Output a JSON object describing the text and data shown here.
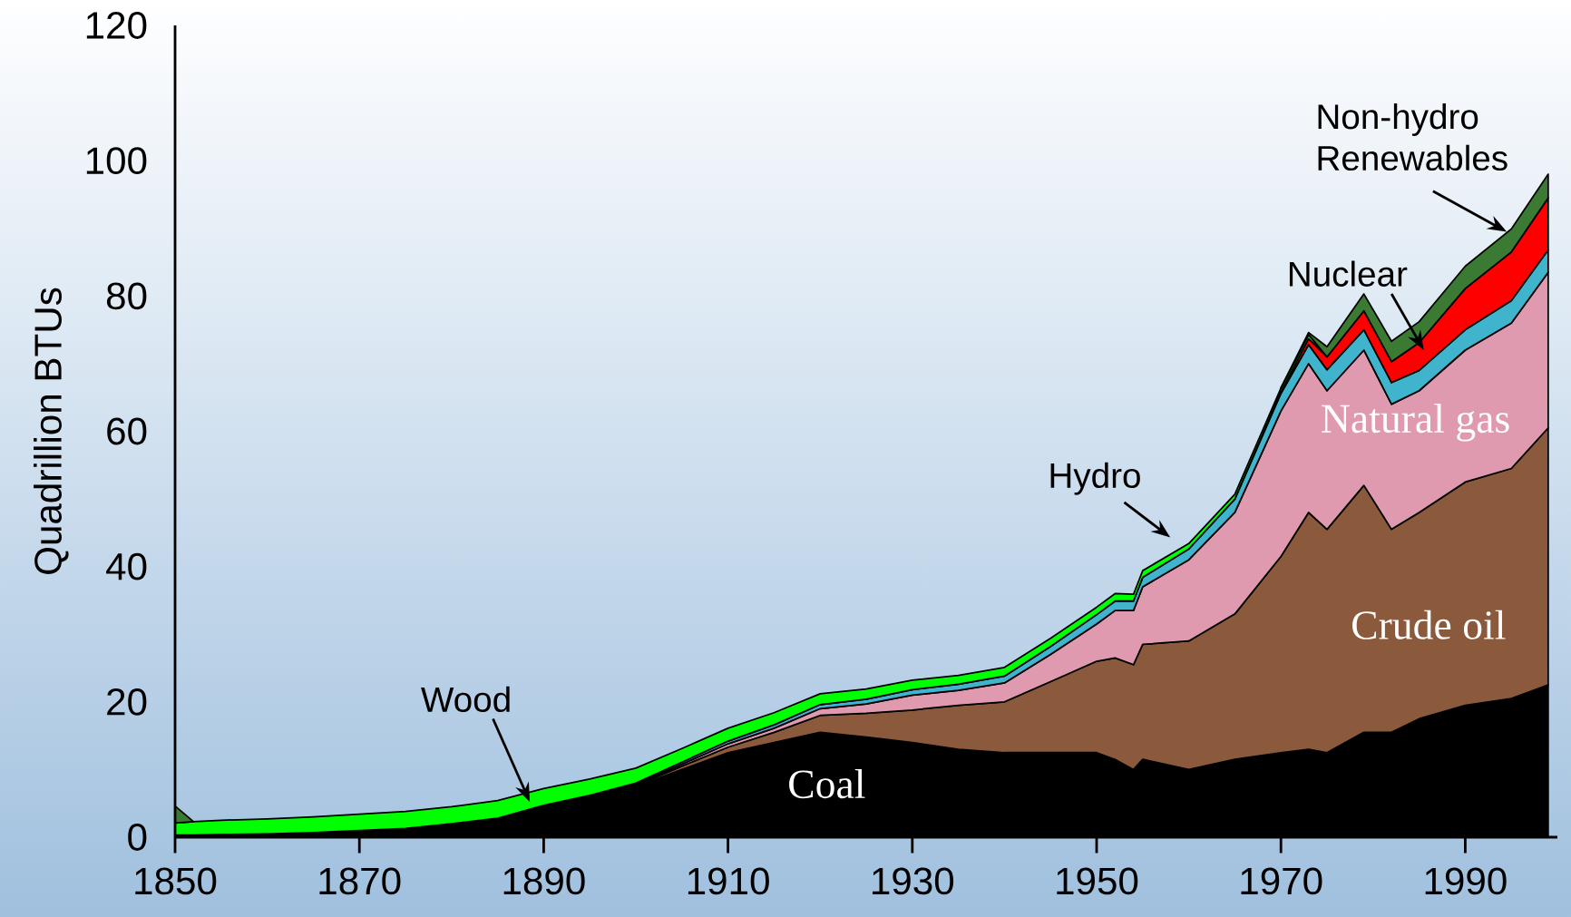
{
  "chart_data": {
    "type": "area",
    "stacked": true,
    "ylabel": "Quadrillion BTUs",
    "x": [
      1850,
      1852,
      1855,
      1860,
      1865,
      1870,
      1875,
      1880,
      1885,
      1890,
      1895,
      1900,
      1905,
      1910,
      1915,
      1920,
      1925,
      1930,
      1935,
      1940,
      1945,
      1950,
      1952,
      1954,
      1955,
      1960,
      1965,
      1970,
      1973,
      1975,
      1979,
      1982,
      1985,
      1990,
      1995,
      1999
    ],
    "xlim": [
      1850,
      2000
    ],
    "xticks": [
      1850,
      1870,
      1890,
      1910,
      1930,
      1950,
      1970,
      1990
    ],
    "ylim": [
      0,
      120
    ],
    "yticks": [
      0,
      20,
      40,
      60,
      80,
      100,
      120
    ],
    "series": [
      {
        "name": "Coal",
        "color": "#000000",
        "values": [
          0.3,
          0.3,
          0.4,
          0.5,
          0.7,
          1.0,
          1.3,
          2.0,
          2.8,
          4.5,
          6.0,
          7.5,
          10,
          12.5,
          14,
          15.5,
          14.8,
          14,
          13,
          12.5,
          12.5,
          12.5,
          11.5,
          10,
          11.5,
          10,
          11.5,
          12.5,
          13,
          12.5,
          15.5,
          15.5,
          17.5,
          19.5,
          20.5,
          22.5
        ]
      },
      {
        "name": "Crude oil",
        "color": "#8b5a3c",
        "values": [
          0,
          0,
          0,
          0,
          0,
          0,
          0,
          0,
          0,
          0,
          0,
          0.1,
          0.5,
          0.8,
          1.5,
          2.5,
          3.5,
          4.8,
          6.5,
          7.5,
          10.5,
          13.5,
          15,
          15.5,
          17,
          19,
          21.5,
          29,
          35,
          33,
          36.5,
          30,
          30.5,
          33,
          34,
          38
        ]
      },
      {
        "name": "Natural gas",
        "color": "#e09ab0",
        "values": [
          0,
          0,
          0,
          0,
          0,
          0,
          0,
          0,
          0,
          0.1,
          0.1,
          0.2,
          0.3,
          0.5,
          0.6,
          1.0,
          1.4,
          2.2,
          2.2,
          2.8,
          4,
          5.5,
          7,
          8,
          8.5,
          12,
          15,
          21.5,
          22,
          20.5,
          20,
          18.5,
          18,
          19.5,
          21.5,
          23
        ]
      },
      {
        "name": "Hydro",
        "color": "#40b4cc",
        "values": [
          0,
          0,
          0,
          0,
          0,
          0,
          0,
          0,
          0,
          0.1,
          0.1,
          0.2,
          0.3,
          0.4,
          0.5,
          0.6,
          0.7,
          0.8,
          0.9,
          1.0,
          1.2,
          1.4,
          1.4,
          1.4,
          1.4,
          1.6,
          2.0,
          2.6,
          2.8,
          3.1,
          3.0,
          3.2,
          3.0,
          3.0,
          3.3,
          3.3
        ]
      },
      {
        "name": "Nuclear",
        "color": "#ff0000",
        "values": [
          null,
          null,
          null,
          null,
          null,
          null,
          null,
          null,
          null,
          null,
          null,
          null,
          null,
          null,
          null,
          null,
          null,
          null,
          null,
          null,
          null,
          null,
          null,
          null,
          null,
          0,
          0,
          0.2,
          0.9,
          1.9,
          2.8,
          3.1,
          4.1,
          6.1,
          7.2,
          7.7
        ]
      },
      {
        "name": "Wood",
        "color": "#00ff00",
        "values": [
          1.8,
          2.0,
          2.1,
          2.2,
          2.3,
          2.4,
          2.5,
          2.5,
          2.6,
          2.5,
          2.4,
          2.2,
          2.0,
          1.9,
          1.8,
          1.6,
          1.5,
          1.4,
          1.3,
          1.3,
          1.2,
          1.1,
          1.1,
          1.0,
          1.0,
          0.8,
          0.7,
          0.6,
          0.6,
          0,
          null,
          null,
          null,
          null,
          null,
          null
        ]
      },
      {
        "name": "Non-hydro Renewables",
        "color": "#3a7a32",
        "values": [
          2.5,
          0,
          null,
          null,
          null,
          null,
          null,
          null,
          null,
          null,
          null,
          null,
          null,
          null,
          null,
          null,
          null,
          null,
          null,
          null,
          null,
          null,
          null,
          null,
          null,
          null,
          null,
          0,
          0.3,
          1.5,
          2.5,
          3.0,
          3.1,
          3.3,
          3.4,
          3.5
        ]
      }
    ]
  }
}
